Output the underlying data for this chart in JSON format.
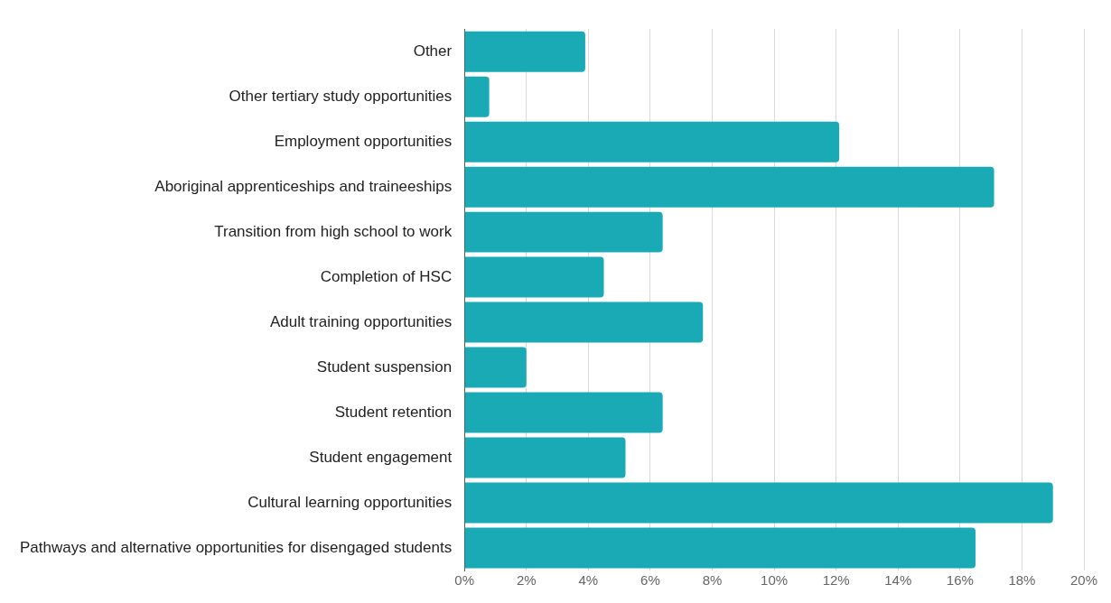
{
  "chart_data": {
    "type": "bar",
    "orientation": "horizontal",
    "categories": [
      "Other",
      "Other tertiary study opportunities",
      "Employment opportunities",
      "Aboriginal apprenticeships and traineeships",
      "Transition from high school to work",
      "Completion of HSC",
      "Adult training opportunities",
      "Student suspension",
      "Student retention",
      "Student engagement",
      "Cultural learning opportunities",
      "Pathways and alternative opportunities for disengaged students"
    ],
    "values": [
      3.9,
      0.8,
      12.1,
      17.1,
      6.4,
      4.5,
      7.7,
      2.0,
      6.4,
      5.2,
      19.0,
      16.5
    ],
    "color": "#1aaab6",
    "xlim": [
      0,
      20
    ],
    "xticks": [
      {
        "value": 0,
        "label": "0%"
      },
      {
        "value": 2,
        "label": "2%"
      },
      {
        "value": 4,
        "label": "4%"
      },
      {
        "value": 6,
        "label": "6%"
      },
      {
        "value": 8,
        "label": "8%"
      },
      {
        "value": 10,
        "label": "10%"
      },
      {
        "value": 12,
        "label": "12%"
      },
      {
        "value": 14,
        "label": "14%"
      },
      {
        "value": 16,
        "label": "16%"
      },
      {
        "value": 18,
        "label": "18%"
      },
      {
        "value": 20,
        "label": "20%"
      }
    ],
    "grid": "x",
    "legend": false
  }
}
